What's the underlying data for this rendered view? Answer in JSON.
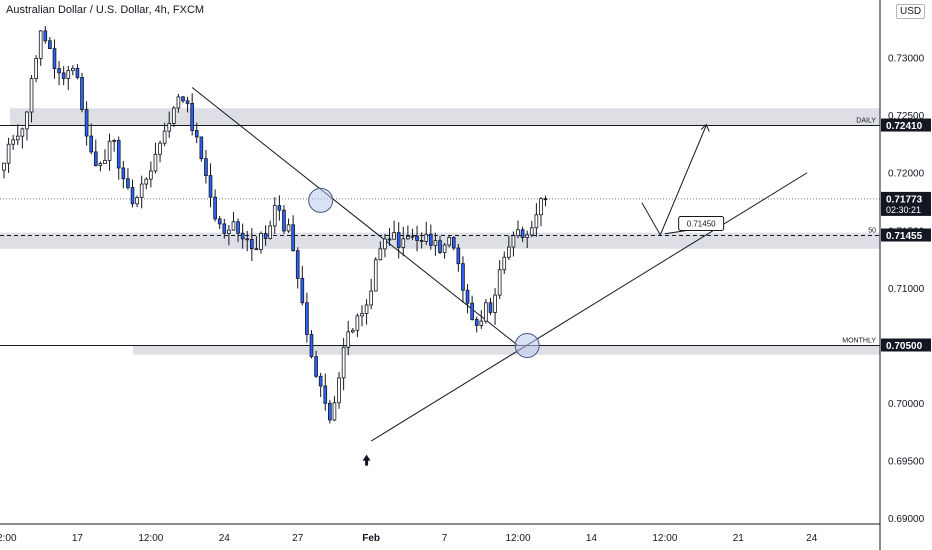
{
  "header": {
    "title": "Australian Dollar / U.S. Dollar, 4h, FXCM",
    "currency": "USD"
  },
  "colors": {
    "up": "#ffffff",
    "down": "#2962ff",
    "wick": "#131722",
    "zone": "#d1d4dc",
    "circle": "#b9c9ec"
  },
  "chart_data": {
    "type": "candlestick",
    "y_axis": {
      "min": 0.6895,
      "max": 0.735,
      "ticks": [
        "0.73000",
        "0.72500",
        "0.72000",
        "0.71500",
        "0.71000",
        "0.70500",
        "0.70000",
        "0.69500",
        "0.69000"
      ],
      "tick_values": [
        0.73,
        0.725,
        0.72,
        0.715,
        0.71,
        0.705,
        0.7,
        0.695,
        0.69
      ]
    },
    "x_axis": {
      "labels": [
        "12:00",
        "17",
        "12:00",
        "24",
        "27",
        "Feb",
        "7",
        "12:00",
        "14",
        "12:00",
        "21",
        "24"
      ],
      "label_index": [
        0,
        16,
        32,
        48,
        64,
        80,
        96,
        112,
        128,
        144,
        160,
        176
      ],
      "candle_count": 119,
      "total_slots": 190
    },
    "price_labels": [
      {
        "id": "daily",
        "text": "0.72410",
        "value": 0.7241
      },
      {
        "id": "last",
        "text": "0.71773",
        "value": 0.71773,
        "countdown": "02:30:21"
      },
      {
        "id": "fifty",
        "text": "0.71455",
        "value": 0.71455
      },
      {
        "id": "monthly",
        "text": "0.70500",
        "value": 0.705
      }
    ],
    "levels": [
      {
        "name": "DAILY",
        "value": 0.7241,
        "zone": [
          0.7241,
          0.7256
        ]
      },
      {
        "name": "50",
        "value": 0.71455,
        "zone": [
          0.7134,
          0.7148
        ]
      },
      {
        "name": "MONTHLY",
        "value": 0.705,
        "zone": [
          0.7042,
          0.705
        ]
      }
    ],
    "annotations": {
      "target_box": "0.71450"
    },
    "anchors": [
      0.7215,
      0.7235,
      0.7318,
      0.729,
      0.7288,
      0.7198,
      0.7228,
      0.7178,
      0.72,
      0.7242,
      0.7268,
      0.7205,
      0.7148,
      0.7152,
      0.7132,
      0.717,
      0.714,
      0.704,
      0.6982,
      0.7058,
      0.7078,
      0.715,
      0.7142,
      0.715,
      0.7137,
      0.7138,
      0.706,
      0.7088,
      0.714,
      0.7151,
      0.7182
    ]
  }
}
